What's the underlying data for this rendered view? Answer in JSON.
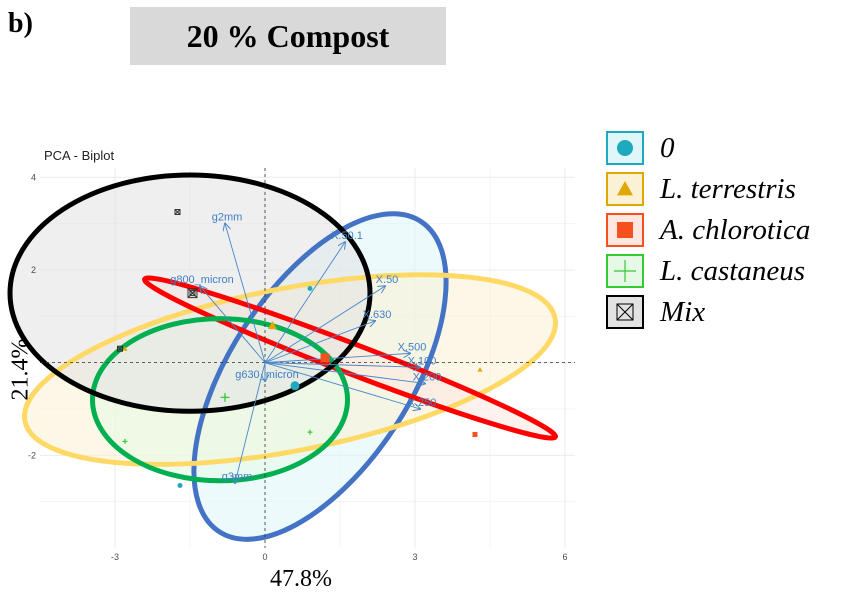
{
  "panel_label": "b)",
  "title": "20 % Compost",
  "chart_data": {
    "type": "scatter",
    "title": "PCA - Biplot",
    "xlabel": "47.8%",
    "ylabel": "21.4%",
    "xlim": [
      -4.5,
      6.2
    ],
    "ylim": [
      -4.0,
      4.2
    ],
    "xticks": [
      -3,
      0,
      3,
      6
    ],
    "yticks": [
      -2,
      0,
      2,
      4
    ],
    "xtick_labels": [
      "-3",
      "0",
      "3",
      "6"
    ],
    "ytick_labels": [
      "-2",
      "",
      "2",
      "4"
    ],
    "grid": true,
    "legend_position": "right",
    "series": [
      {
        "name": "0",
        "marker": "circle",
        "color": "#1fa9bf",
        "fill": "#dff6fa",
        "points": [
          [
            0.9,
            1.6
          ],
          [
            0.6,
            -0.5
          ],
          [
            -1.7,
            -2.65
          ]
        ],
        "centroid": [
          0.6,
          -0.5
        ],
        "ellipse": {
          "cx": 1.1,
          "cy": -0.3,
          "rx": 3.7,
          "ry": 1.95,
          "angle_deg": 57,
          "stroke": "#4472c4"
        }
      },
      {
        "name": "L. terrestris",
        "marker": "triangle",
        "color": "#e0a800",
        "fill": "#fbf1d4",
        "points": [
          [
            0.15,
            0.8
          ],
          [
            4.3,
            -0.15
          ],
          [
            -2.8,
            0.3
          ]
        ],
        "centroid": [
          0.15,
          0.8
        ],
        "ellipse": {
          "cx": 0.5,
          "cy": -0.15,
          "rx": 5.4,
          "ry": 1.75,
          "angle_deg": 11,
          "stroke": "#ffd966"
        }
      },
      {
        "name": "A. chlorotica",
        "marker": "square",
        "color": "#f5501d",
        "fill": "#fde7e0",
        "points": [
          [
            4.2,
            -1.55
          ],
          [
            1.2,
            0.1
          ]
        ],
        "centroid": [
          1.2,
          0.1
        ],
        "ellipse": {
          "cx": 1.7,
          "cy": 0.1,
          "rx": 4.4,
          "ry": 0.32,
          "angle_deg": -21,
          "stroke": "#ff0000"
        }
      },
      {
        "name": "L. castaneus",
        "marker": "plus",
        "color": "#33cc33",
        "fill": "#e6f9e6",
        "points": [
          [
            -2.8,
            -1.7
          ],
          [
            0.9,
            -1.5
          ],
          [
            -0.8,
            -0.75
          ]
        ],
        "centroid": [
          -0.8,
          -0.75
        ],
        "ellipse": {
          "cx": -0.9,
          "cy": -0.8,
          "rx": 2.55,
          "ry": 1.75,
          "angle_deg": 0,
          "stroke": "#00b050"
        }
      },
      {
        "name": "Mix",
        "marker": "boxed-x",
        "color": "#333333",
        "fill": "#e2e2e2",
        "points": [
          [
            -1.75,
            3.25
          ],
          [
            -2.9,
            0.3
          ],
          [
            -1.45,
            1.5
          ]
        ],
        "centroid": [
          -1.45,
          1.5
        ],
        "ellipse": {
          "cx": -1.5,
          "cy": 1.5,
          "rx": 3.6,
          "ry": 2.55,
          "angle_deg": 0,
          "stroke": "#000000"
        }
      }
    ],
    "loadings": [
      {
        "name": "g2mm",
        "x": -0.8,
        "y": 3.0
      },
      {
        "name": "g800_micron",
        "x": -1.3,
        "y": 1.65
      },
      {
        "name": "X.50.1",
        "x": 1.6,
        "y": 2.6
      },
      {
        "name": "X.50",
        "x": 2.4,
        "y": 1.65
      },
      {
        "name": "X.630",
        "x": 2.2,
        "y": 0.9
      },
      {
        "name": "X.500",
        "x": 2.9,
        "y": 0.2
      },
      {
        "name": "X.100",
        "x": 3.1,
        "y": -0.1
      },
      {
        "name": "X.200",
        "x": 3.2,
        "y": -0.45
      },
      {
        "name": "X.250",
        "x": 3.1,
        "y": -1.0
      },
      {
        "name": "g630_micron",
        "x": 0.0,
        "y": -0.4
      },
      {
        "name": "g3mm",
        "x": -0.6,
        "y": -2.6
      }
    ]
  }
}
